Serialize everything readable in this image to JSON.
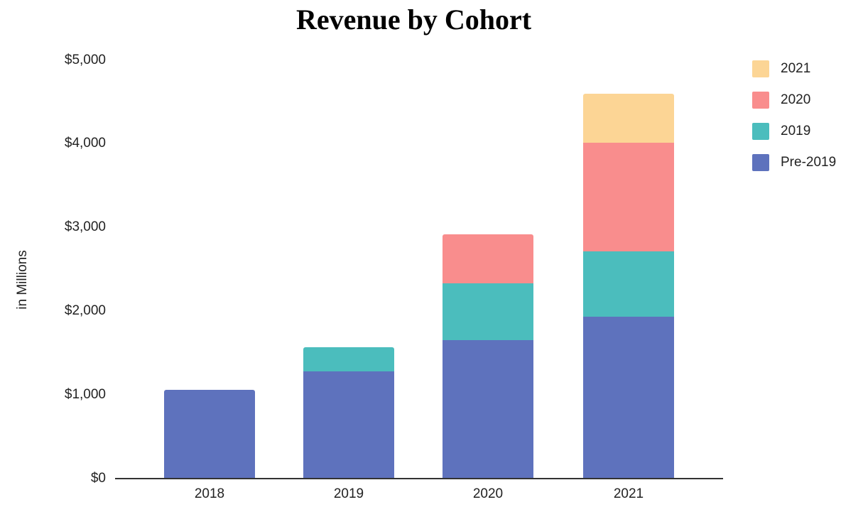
{
  "chart_data": {
    "type": "bar",
    "stacked": true,
    "title": "Revenue by Cohort",
    "xlabel": "",
    "ylabel": "in Millions",
    "ylim": [
      0,
      5000
    ],
    "y_ticks": [
      "$0",
      "$1,000",
      "$2,000",
      "$3,000",
      "$4,000",
      "$5,000"
    ],
    "y_tick_values": [
      0,
      1000,
      2000,
      3000,
      4000,
      5000
    ],
    "grid": false,
    "legend_position": "right",
    "categories": [
      "2018",
      "2019",
      "2020",
      "2021"
    ],
    "series": [
      {
        "name": "Pre-2019",
        "color": "#5e72bd",
        "values": [
          1060,
          1280,
          1650,
          1930
        ]
      },
      {
        "name": "2019",
        "color": "#4bbdbd",
        "values": [
          0,
          290,
          680,
          780
        ]
      },
      {
        "name": "2020",
        "color": "#f98d8d",
        "values": [
          0,
          0,
          590,
          1300
        ]
      },
      {
        "name": "2021",
        "color": "#fcd595",
        "values": [
          0,
          0,
          0,
          590
        ]
      }
    ],
    "totals": [
      1060,
      1570,
      2920,
      4600
    ]
  },
  "legend": [
    {
      "label": "2021",
      "color": "#fcd595"
    },
    {
      "label": "2020",
      "color": "#f98d8d"
    },
    {
      "label": "2019",
      "color": "#4bbdbd"
    },
    {
      "label": "Pre-2019",
      "color": "#5e72bd"
    }
  ]
}
